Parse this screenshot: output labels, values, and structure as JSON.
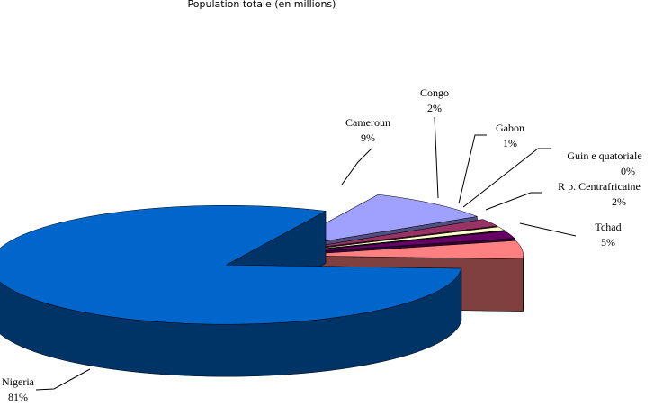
{
  "chart_data": {
    "type": "pie3d",
    "title": "Population totale (en millions)",
    "categories": [
      "Cameroun",
      "Congo",
      "Gabon",
      "Guin e quatoriale",
      "R p. Centrafricaine",
      "Tchad",
      "Nigeria"
    ],
    "values": [
      9,
      2,
      1,
      0,
      2,
      5,
      81
    ],
    "value_labels": [
      "9%",
      "2%",
      "1%",
      "0%",
      "2%",
      "5%",
      "81%"
    ],
    "colors": [
      "#a0a0ff",
      "#993366",
      "#ffffcc",
      "#e0e0e0",
      "#660066",
      "#ff8080",
      "#0066cc"
    ]
  }
}
